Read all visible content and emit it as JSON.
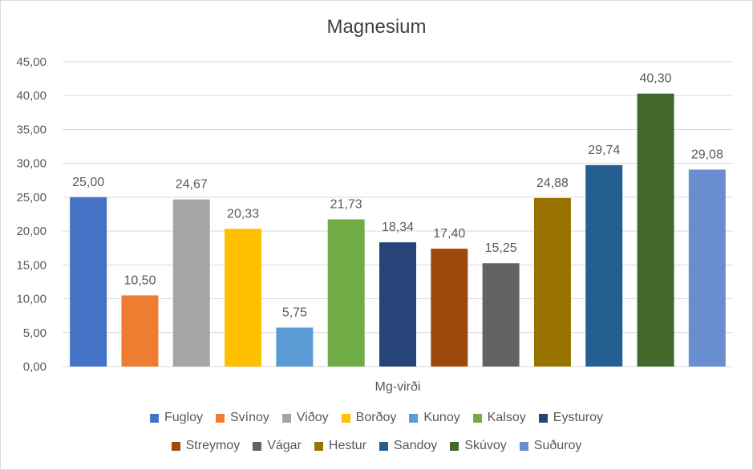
{
  "chart_data": {
    "type": "bar",
    "title": "Magnesium",
    "xlabel": "Mg-virði",
    "ylabel": "",
    "ylim": [
      0,
      45
    ],
    "yticks": [
      "0,00",
      "5,00",
      "10,00",
      "15,00",
      "20,00",
      "25,00",
      "30,00",
      "35,00",
      "40,00",
      "45,00"
    ],
    "grid": true,
    "legend_position": "bottom",
    "series": [
      {
        "name": "Fugloy",
        "value": 25.0,
        "label": "25,00",
        "color": "#4472c4"
      },
      {
        "name": "Svínoy",
        "value": 10.5,
        "label": "10,50",
        "color": "#ed7d31"
      },
      {
        "name": "Viðoy",
        "value": 24.67,
        "label": "24,67",
        "color": "#a5a5a5"
      },
      {
        "name": "Borðoy",
        "value": 20.33,
        "label": "20,33",
        "color": "#ffc000"
      },
      {
        "name": "Kunoy",
        "value": 5.75,
        "label": "5,75",
        "color": "#5b9bd5"
      },
      {
        "name": "Kalsoy",
        "value": 21.73,
        "label": "21,73",
        "color": "#70ad47"
      },
      {
        "name": "Eysturoy",
        "value": 18.34,
        "label": "18,34",
        "color": "#264478"
      },
      {
        "name": "Streymoy",
        "value": 17.4,
        "label": "17,40",
        "color": "#9e480e"
      },
      {
        "name": "Vágar",
        "value": 15.25,
        "label": "15,25",
        "color": "#636363"
      },
      {
        "name": "Hestur",
        "value": 24.88,
        "label": "24,88",
        "color": "#997300"
      },
      {
        "name": "Sandoy",
        "value": 29.74,
        "label": "29,74",
        "color": "#255e91"
      },
      {
        "name": "Skúvoy",
        "value": 40.3,
        "label": "40,30",
        "color": "#43682b"
      },
      {
        "name": "Suðuroy",
        "value": 29.08,
        "label": "29,08",
        "color": "#698ed0"
      }
    ]
  },
  "colors": {
    "gridline": "#d9d9d9",
    "axis_text": "#595959",
    "title_text": "#404040"
  }
}
